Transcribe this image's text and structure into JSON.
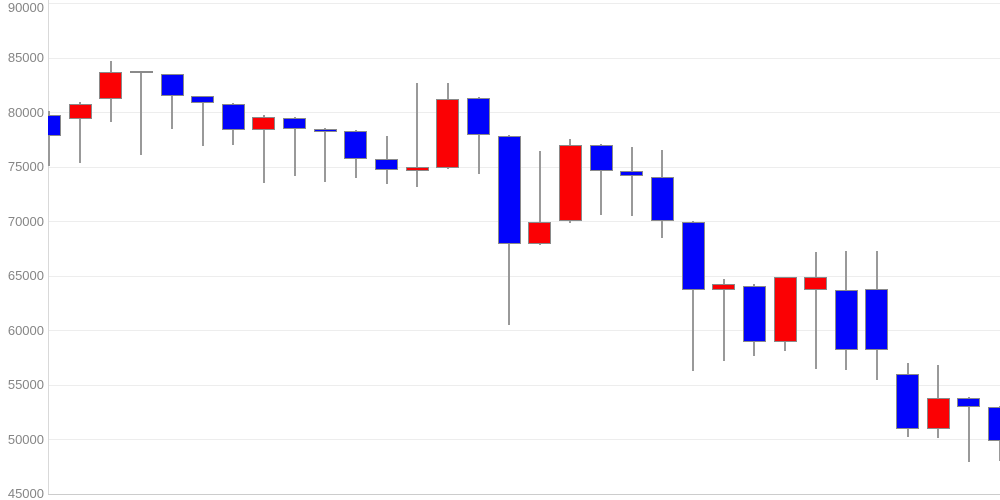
{
  "chart_data": {
    "type": "candlestick",
    "title": "",
    "xlabel": "",
    "ylabel": "",
    "grid": true,
    "legend": "none",
    "y_axis": {
      "min": 45000,
      "max": 90000,
      "tick_step": 5000,
      "labels": [
        "90000",
        "85000",
        "80000",
        "75000",
        "70000",
        "65000",
        "60000",
        "55000",
        "50000",
        "45000"
      ]
    },
    "colors": {
      "up": "#fb0104",
      "down": "#0102fb",
      "wick": "#999999",
      "body_border": "#8a8a8a",
      "grid": "#ededed",
      "grid_bottom": "#cccccc",
      "axis_line": "#d9d9d9",
      "label_text": "#858585",
      "background": "#ffffff"
    },
    "candles": [
      {
        "open": 79800,
        "high": 80100,
        "low": 75100,
        "close": 77800,
        "dir": "down"
      },
      {
        "open": 79400,
        "high": 81000,
        "low": 75400,
        "close": 80800,
        "dir": "up"
      },
      {
        "open": 81200,
        "high": 84700,
        "low": 79100,
        "close": 83700,
        "dir": "up"
      },
      {
        "open": 83800,
        "high": 83850,
        "low": 76100,
        "close": 83600,
        "dir": "down"
      },
      {
        "open": 83500,
        "high": 83550,
        "low": 78500,
        "close": 81500,
        "dir": "down"
      },
      {
        "open": 81500,
        "high": 81550,
        "low": 76900,
        "close": 80900,
        "dir": "down"
      },
      {
        "open": 80800,
        "high": 80850,
        "low": 77000,
        "close": 78400,
        "dir": "down"
      },
      {
        "open": 78400,
        "high": 79800,
        "low": 73500,
        "close": 79600,
        "dir": "up"
      },
      {
        "open": 79500,
        "high": 79600,
        "low": 74200,
        "close": 78500,
        "dir": "down"
      },
      {
        "open": 78500,
        "high": 78600,
        "low": 73600,
        "close": 78200,
        "dir": "down"
      },
      {
        "open": 78300,
        "high": 78350,
        "low": 74000,
        "close": 75700,
        "dir": "down"
      },
      {
        "open": 75700,
        "high": 77800,
        "low": 73400,
        "close": 74700,
        "dir": "down"
      },
      {
        "open": 74600,
        "high": 82700,
        "low": 73200,
        "close": 75000,
        "dir": "up"
      },
      {
        "open": 74900,
        "high": 82700,
        "low": 74800,
        "close": 81200,
        "dir": "up"
      },
      {
        "open": 81300,
        "high": 81400,
        "low": 74400,
        "close": 77900,
        "dir": "down"
      },
      {
        "open": 77800,
        "high": 77900,
        "low": 60500,
        "close": 67900,
        "dir": "down"
      },
      {
        "open": 67900,
        "high": 76500,
        "low": 67800,
        "close": 70000,
        "dir": "up"
      },
      {
        "open": 70000,
        "high": 77600,
        "low": 69900,
        "close": 77000,
        "dir": "up"
      },
      {
        "open": 77000,
        "high": 77100,
        "low": 70600,
        "close": 74600,
        "dir": "down"
      },
      {
        "open": 74600,
        "high": 76800,
        "low": 70500,
        "close": 74200,
        "dir": "down"
      },
      {
        "open": 74100,
        "high": 76600,
        "low": 68500,
        "close": 70000,
        "dir": "down"
      },
      {
        "open": 70000,
        "high": 70050,
        "low": 56300,
        "close": 63700,
        "dir": "down"
      },
      {
        "open": 63700,
        "high": 64700,
        "low": 57200,
        "close": 64300,
        "dir": "up"
      },
      {
        "open": 64100,
        "high": 64300,
        "low": 57700,
        "close": 58900,
        "dir": "down"
      },
      {
        "open": 58900,
        "high": 64950,
        "low": 58100,
        "close": 64900,
        "dir": "up"
      },
      {
        "open": 63700,
        "high": 67200,
        "low": 56500,
        "close": 64900,
        "dir": "up"
      },
      {
        "open": 63700,
        "high": 67300,
        "low": 56400,
        "close": 58200,
        "dir": "down"
      },
      {
        "open": 63800,
        "high": 67300,
        "low": 55500,
        "close": 58200,
        "dir": "down"
      },
      {
        "open": 56000,
        "high": 57000,
        "low": 50200,
        "close": 51000,
        "dir": "down"
      },
      {
        "open": 51000,
        "high": 56800,
        "low": 50100,
        "close": 53800,
        "dir": "up"
      },
      {
        "open": 53800,
        "high": 53900,
        "low": 47900,
        "close": 53000,
        "dir": "down"
      },
      {
        "open": 53000,
        "high": 53050,
        "low": 48000,
        "close": 49900,
        "dir": "down"
      }
    ]
  }
}
